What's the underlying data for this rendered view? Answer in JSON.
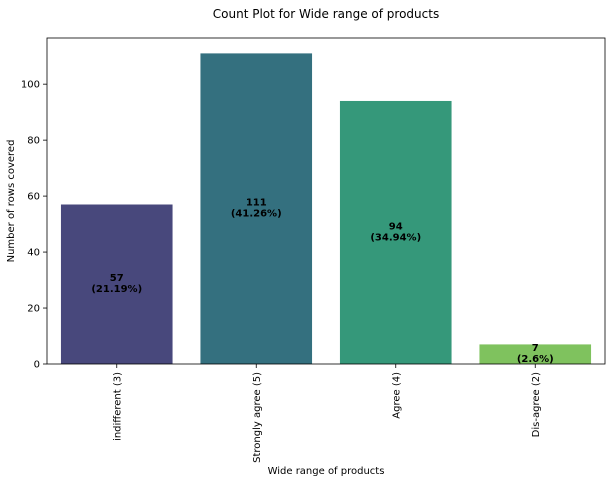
{
  "chart_data": {
    "type": "bar",
    "title": "Count Plot for Wide range of products",
    "xlabel": "Wide range of products",
    "ylabel": "Number of rows covered",
    "categories": [
      "indifferent (3)",
      "Strongly agree (5)",
      "Agree (4)",
      "Dis-agree (2)"
    ],
    "values": [
      57,
      111,
      94,
      7
    ],
    "bar_labels": [
      [
        "57",
        "(21.19%)"
      ],
      [
        "111",
        "(41.26%)"
      ],
      [
        "94",
        "(34.94%)"
      ],
      [
        "7",
        "(2.6%)"
      ]
    ],
    "colors": [
      "#48487c",
      "#34707f",
      "#35987a",
      "#7fc25e"
    ],
    "ylim": [
      0,
      116.5
    ],
    "yticks": [
      0,
      20,
      40,
      60,
      80,
      100
    ],
    "xtick_rotation": "vertical",
    "grid": false,
    "legend": false
  }
}
